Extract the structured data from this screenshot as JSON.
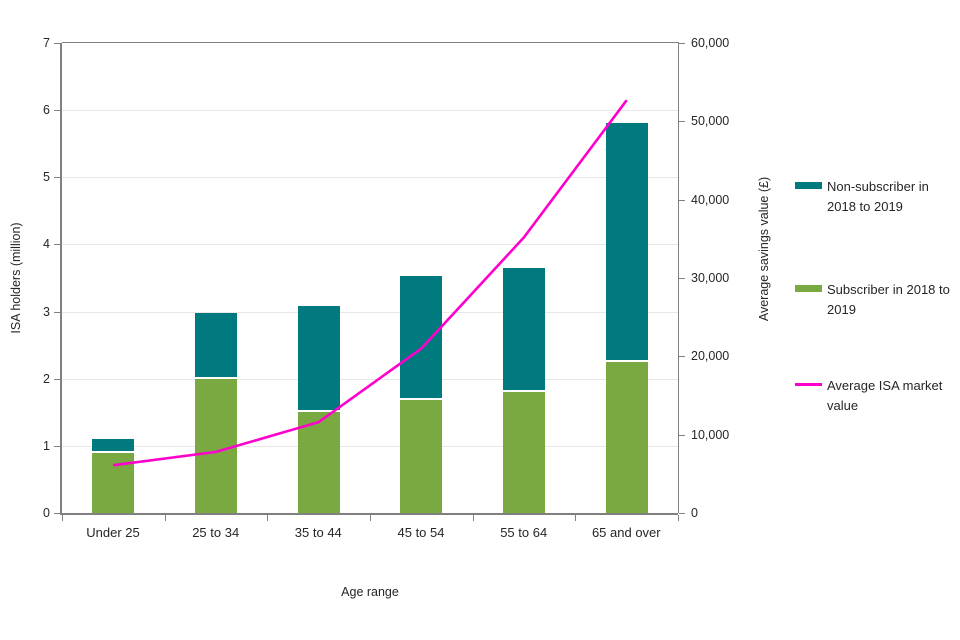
{
  "chart_data": {
    "type": "bar+line combo (stacked bars, dual axis)",
    "categories": [
      "Under 25",
      "25 to 34",
      "35 to 44",
      "45 to 54",
      "55 to 64",
      "65 and over"
    ],
    "series": [
      {
        "name": "Subscriber in 2018 to 2019",
        "type": "bar",
        "stack": "bottom",
        "axis": "left",
        "color": "#7aa942",
        "values": [
          0.9,
          2.0,
          1.5,
          1.68,
          1.8,
          2.25
        ]
      },
      {
        "name": "Non-subscriber in 2018 to 2019",
        "type": "bar",
        "stack": "top",
        "axis": "left",
        "color": "#00797f",
        "values": [
          0.18,
          0.95,
          1.55,
          1.82,
          1.82,
          3.53
        ]
      },
      {
        "name": "Average ISA market value",
        "type": "line",
        "axis": "right",
        "color": "#ff00cc",
        "values": [
          6100,
          7800,
          11600,
          21000,
          35200,
          52700
        ]
      }
    ],
    "xlabel": "Age range",
    "ylabel_left": "ISA holders (million)",
    "ylabel_right": "Average savings value (£)",
    "ylim_left": [
      0,
      7
    ],
    "ylim_right": [
      0,
      60000
    ],
    "left_tick_labels": [
      "0",
      "1",
      "2",
      "3",
      "4",
      "5",
      "6",
      "7"
    ],
    "right_tick_labels": [
      "0",
      "10,000",
      "20,000",
      "30,000",
      "40,000",
      "50,000",
      "60,000"
    ],
    "grid": "horizontal, at left-axis integers",
    "legend_position": "right"
  },
  "legend": {
    "items": [
      {
        "label": "Non-subscriber in 2018 to 2019",
        "marker": "bar-swatch",
        "color": "#00797f",
        "series_index": 1
      },
      {
        "label": "Subscriber in 2018 to 2019",
        "marker": "bar-swatch",
        "color": "#7aa942",
        "series_index": 0
      },
      {
        "label": "Average ISA market value",
        "marker": "line-swatch",
        "color": "#ff00cc",
        "series_index": 2
      }
    ]
  },
  "colors": {
    "teal_bar": "#00797f",
    "green_bar": "#7aa942",
    "magenta_line": "#ff00cc",
    "axis": "#808080",
    "gridline": "#e8e8e8",
    "text": "#262626"
  }
}
